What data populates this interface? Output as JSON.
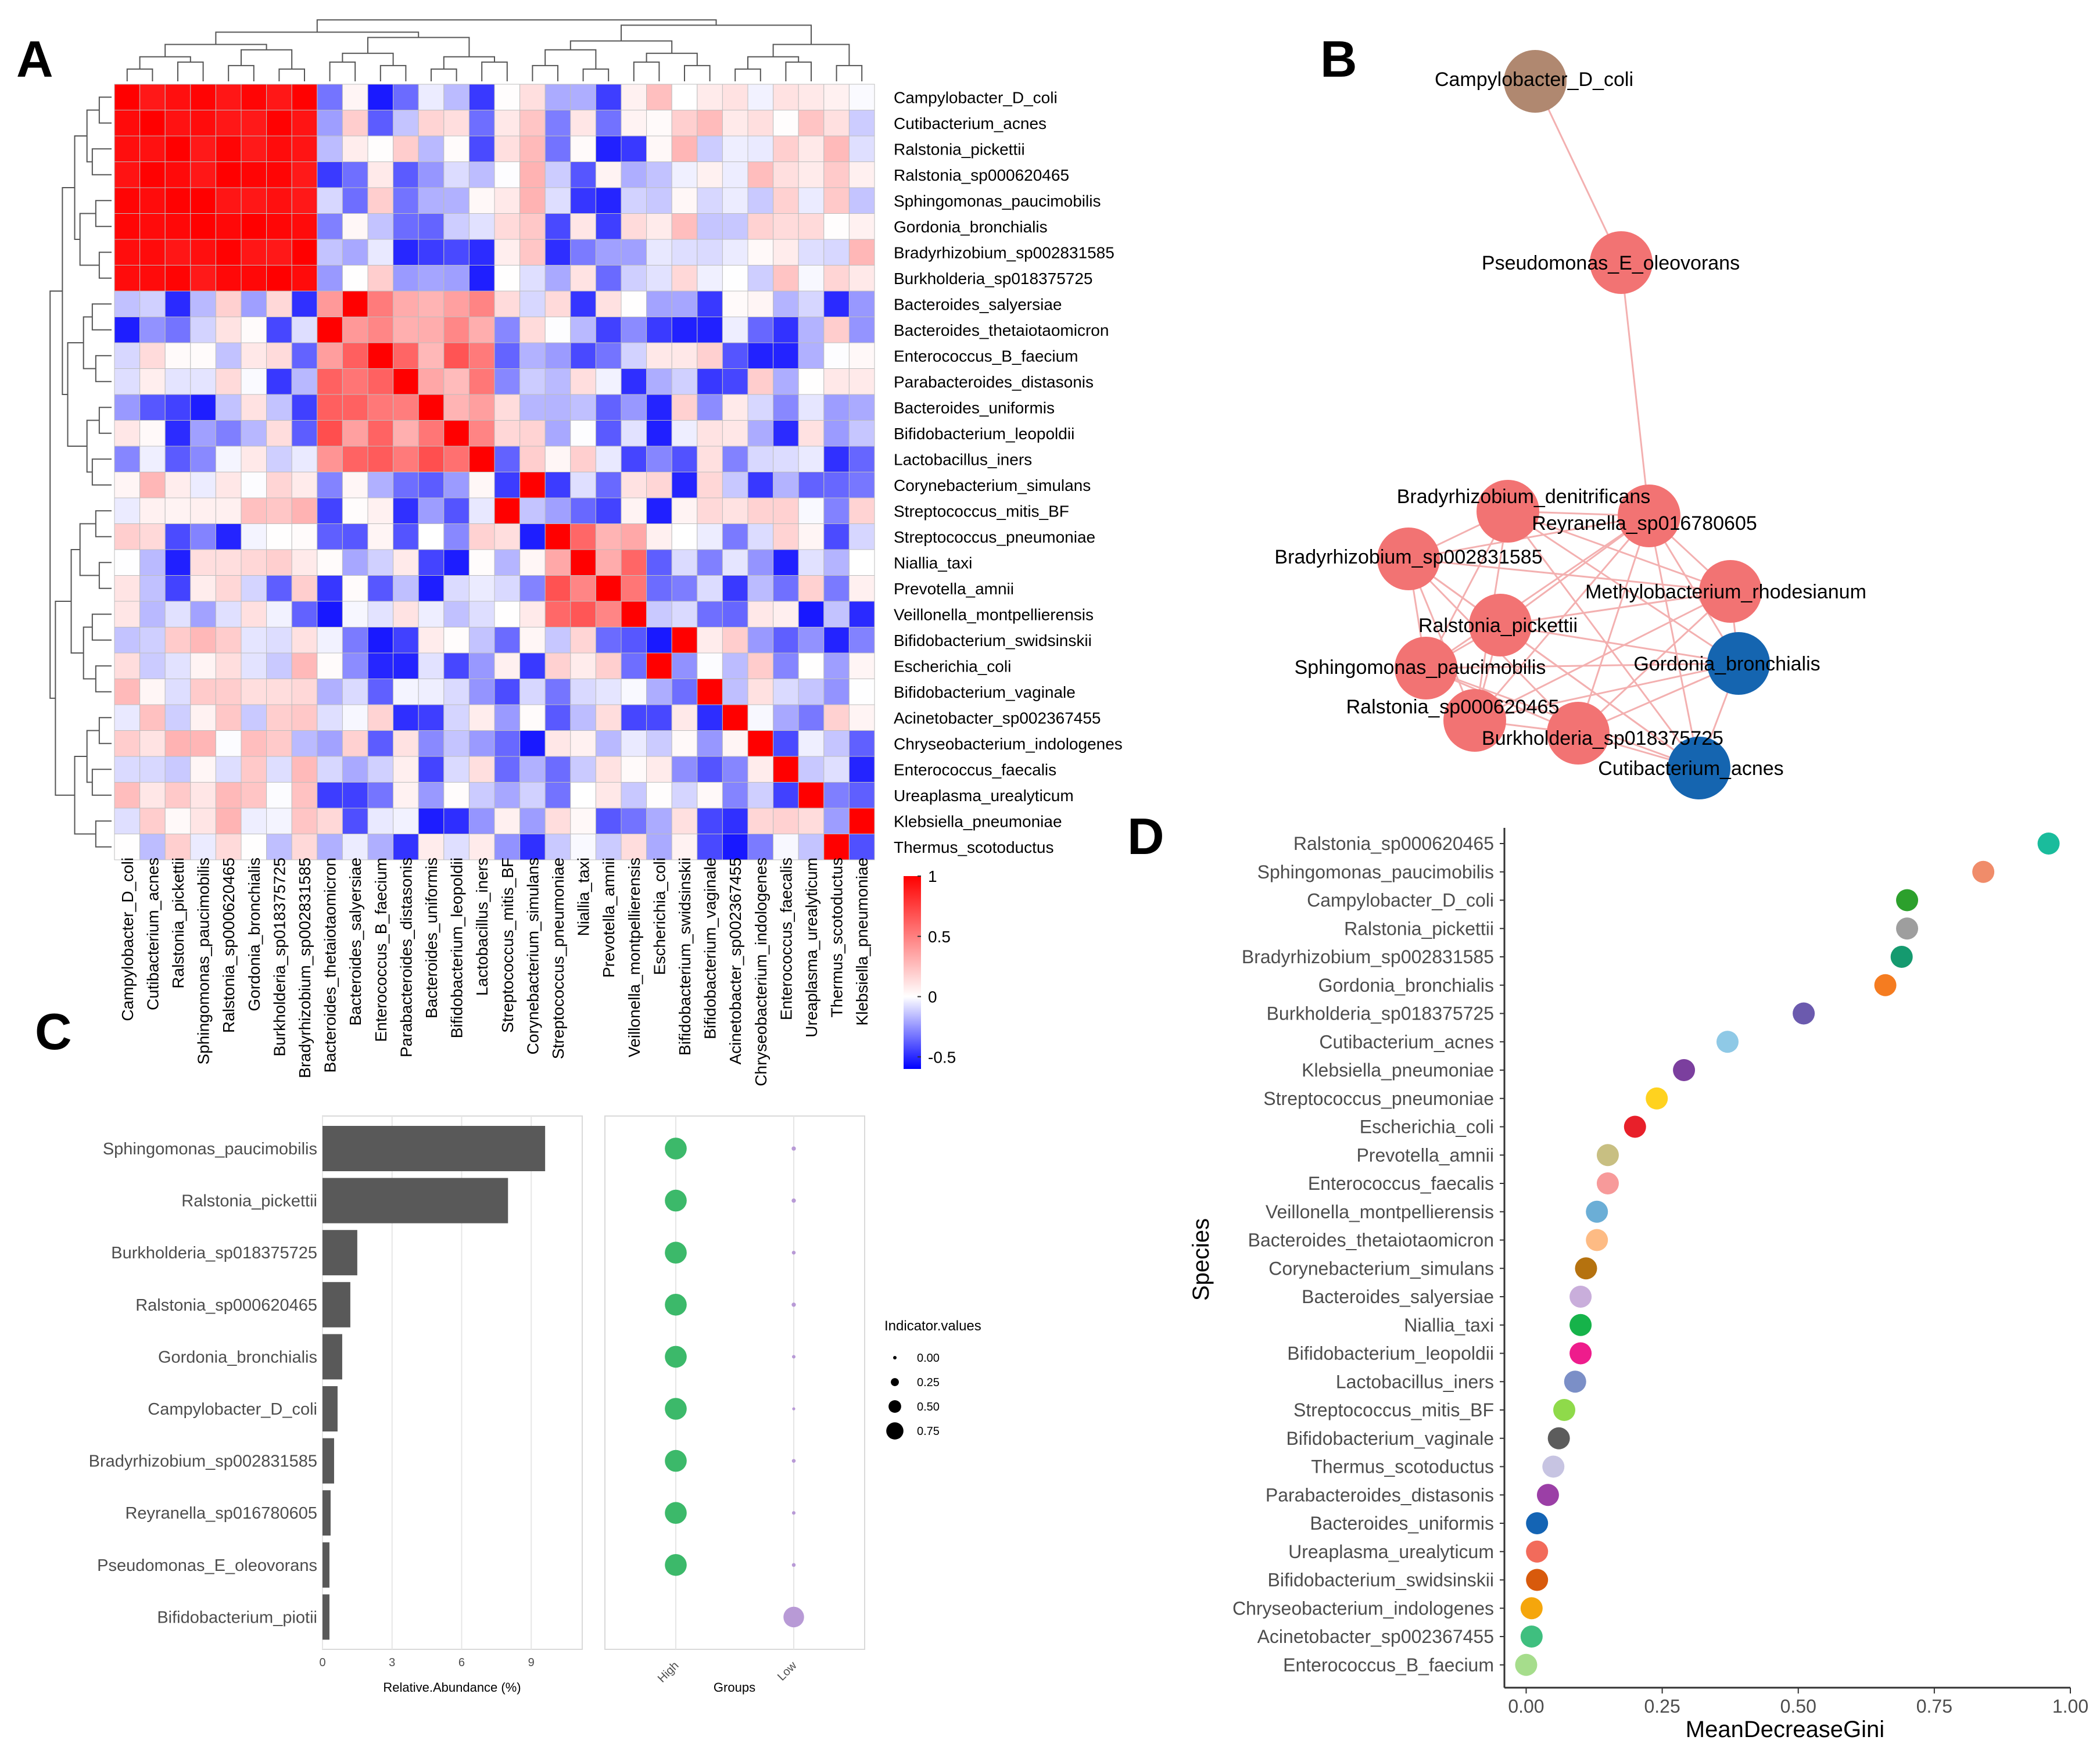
{
  "figure": {
    "panel_labels": [
      "A",
      "B",
      "C",
      "D"
    ]
  },
  "colors": {
    "heat_low": "#0000ff",
    "heat_mid": "#ffffff",
    "heat_high": "#ff0000",
    "node_pink": "#f27373",
    "node_blue": "#1565b0",
    "node_brown": "#b08870",
    "edge": "#f3b0b0",
    "bar": "#595959",
    "high_dot": "#3cb96a",
    "low_dot": "#b89ad6"
  },
  "chart_data": [
    {
      "panel": "A",
      "type": "heatmap",
      "title": "",
      "species": [
        "Campylobacter_D_coli",
        "Cutibacterium_acnes",
        "Ralstonia_pickettii",
        "Ralstonia_sp000620465",
        "Sphingomonas_paucimobilis",
        "Gordonia_bronchialis",
        "Bradyrhizobium_sp002831585",
        "Burkholderia_sp018375725",
        "Bacteroides_salyersiae",
        "Bacteroides_thetaiotaomicron",
        "Enterococcus_B_faecium",
        "Parabacteroides_distasonis",
        "Bacteroides_uniformis",
        "Bifidobacterium_leopoldii",
        "Lactobacillus_iners",
        "Corynebacterium_simulans",
        "Streptococcus_mitis_BF",
        "Streptococcus_pneumoniae",
        "Niallia_taxi",
        "Prevotella_amnii",
        "Veillonella_montpellierensis",
        "Bifidobacterium_swidsinskii",
        "Escherichia_coli",
        "Bifidobacterium_vaginale",
        "Acinetobacter_sp002367455",
        "Chryseobacterium_indologenes",
        "Enterococcus_faecalis",
        "Ureaplasma_urealyticum",
        "Klebsiella_pneumoniae",
        "Thermus_scotoductus"
      ],
      "columns": [
        "Campylobacter_D_coli",
        "Cutibacterium_acnes",
        "Ralstonia_pickettii",
        "Sphingomonas_paucimobilis",
        "Ralstonia_sp000620465",
        "Gordonia_bronchialis",
        "Burkholderia_sp018375725",
        "Bradyrhizobium_sp002831585",
        "Bacteroides_thetaiotaomicron",
        "Bacteroides_salyersiae",
        "Enterococcus_B_faecium",
        "Parabacteroides_distasonis",
        "Bacteroides_uniformis",
        "Bifidobacterium_leopoldii",
        "Lactobacillus_iners",
        "Streptococcus_mitis_BF",
        "Corynebacterium_simulans",
        "Streptococcus_pneumoniae",
        "Niallia_taxi",
        "Prevotella_amnii",
        "Veillonella_montpellierensis",
        "Escherichia_coli",
        "Bifidobacterium_swidsinskii",
        "Bifidobacterium_vaginale",
        "Acinetobacter_sp002367455",
        "Chryseobacterium_indologenes",
        "Enterococcus_faecalis",
        "Ureaplasma_urealyticum",
        "Thermus_scotoductus",
        "Klebsiella_pneumoniae"
      ],
      "colorbar": {
        "ticks": [
          "1",
          "0.5",
          "0",
          "-0.5"
        ],
        "range": [
          -0.6,
          1
        ]
      }
    },
    {
      "panel": "B",
      "type": "network",
      "nodes": [
        {
          "label": "Campylobacter_D_coli",
          "color": "brown"
        },
        {
          "label": "Pseudomonas_E_oleovorans",
          "color": "pink"
        },
        {
          "label": "Bradyrhizobium_denitrificans",
          "color": "pink"
        },
        {
          "label": "Reyranella_sp016780605",
          "color": "pink"
        },
        {
          "label": "Bradyrhizobium_sp002831585",
          "color": "pink"
        },
        {
          "label": "Methylobacterium_rhodesianum",
          "color": "pink"
        },
        {
          "label": "Ralstonia_pickettii",
          "color": "pink"
        },
        {
          "label": "Sphingomonas_paucimobilis",
          "color": "pink"
        },
        {
          "label": "Gordonia_bronchialis",
          "color": "blue"
        },
        {
          "label": "Ralstonia_sp000620465",
          "color": "pink"
        },
        {
          "label": "Burkholderia_sp018375725",
          "color": "pink"
        },
        {
          "label": "Cutibacterium_acnes",
          "color": "blue"
        }
      ]
    },
    {
      "panel": "C",
      "type": "bar",
      "categories": [
        "Sphingomonas_paucimobilis",
        "Ralstonia_pickettii",
        "Burkholderia_sp018375725",
        "Ralstonia_sp000620465",
        "Gordonia_bronchialis",
        "Campylobacter_D_coli",
        "Bradyrhizobium_sp002831585",
        "Reyranella_sp016780605",
        "Pseudomonas_E_oleovorans",
        "Bifidobacterium_piotii"
      ],
      "values": [
        9.6,
        8.0,
        1.5,
        1.2,
        0.85,
        0.65,
        0.5,
        0.35,
        0.3,
        0.3
      ],
      "xlabel": "Relative.Abundance (%)",
      "xticks": [
        "0",
        "3",
        "6",
        "9"
      ],
      "xlim": [
        0,
        11.2
      ],
      "indicator": {
        "groups": [
          "High",
          "Low"
        ],
        "xlabel": "Groups",
        "high_values": [
          0.8,
          0.8,
          0.8,
          0.8,
          0.8,
          0.8,
          0.8,
          0.8,
          0.8,
          0.0
        ],
        "low_values": [
          0.08,
          0.08,
          0.06,
          0.08,
          0.05,
          0.03,
          0.06,
          0.05,
          0.06,
          0.75
        ],
        "legend_title": "Indicator.values",
        "legend_labels": [
          "0.00",
          "0.25",
          "0.50",
          "0.75"
        ],
        "legend_values": [
          0.0,
          0.25,
          0.5,
          0.75
        ]
      }
    },
    {
      "panel": "D",
      "type": "scatter",
      "ylabel": "Species",
      "xlabel": "MeanDecreaseGini",
      "xlim": [
        -0.04,
        1.0
      ],
      "xticks": [
        "0.00",
        "0.25",
        "0.50",
        "0.75",
        "1.00"
      ],
      "species": [
        "Ralstonia_sp000620465",
        "Sphingomonas_paucimobilis",
        "Campylobacter_D_coli",
        "Ralstonia_pickettii",
        "Bradyrhizobium_sp002831585",
        "Gordonia_bronchialis",
        "Burkholderia_sp018375725",
        "Cutibacterium_acnes",
        "Klebsiella_pneumoniae",
        "Streptococcus_pneumoniae",
        "Escherichia_coli",
        "Prevotella_amnii",
        "Enterococcus_faecalis",
        "Veillonella_montpellierensis",
        "Bacteroides_thetaiotaomicron",
        "Corynebacterium_simulans",
        "Bacteroides_salyersiae",
        "Niallia_taxi",
        "Bifidobacterium_leopoldii",
        "Lactobacillus_iners",
        "Streptococcus_mitis_BF",
        "Bifidobacterium_vaginale",
        "Thermus_scotoductus",
        "Parabacteroides_distasonis",
        "Bacteroides_uniformis",
        "Ureaplasma_urealyticum",
        "Bifidobacterium_swidsinskii",
        "Chryseobacterium_indologenes",
        "Acinetobacter_sp002367455",
        "Enterococcus_B_faecium"
      ],
      "values": [
        0.96,
        0.84,
        0.7,
        0.7,
        0.69,
        0.66,
        0.51,
        0.37,
        0.29,
        0.24,
        0.2,
        0.15,
        0.15,
        0.13,
        0.13,
        0.11,
        0.1,
        0.1,
        0.1,
        0.09,
        0.07,
        0.06,
        0.05,
        0.04,
        0.02,
        0.02,
        0.02,
        0.01,
        0.01,
        0.0
      ],
      "point_colors": [
        "#1abc9c",
        "#f08c6a",
        "#2ca02c",
        "#9e9e9e",
        "#159a6f",
        "#f57c20",
        "#6b5aae",
        "#8fc9e6",
        "#7b3f9e",
        "#ffd21f",
        "#e8202a",
        "#c8bf82",
        "#f79a9a",
        "#6baed6",
        "#fdbb84",
        "#b5720f",
        "#c9aedb",
        "#16b34a",
        "#ee1c8c",
        "#7b8fc7",
        "#8fda4a",
        "#5c5c5c",
        "#c7c4e2",
        "#9b3fa6",
        "#1464b4",
        "#f26b5b",
        "#d85a0c",
        "#f5a60c",
        "#3fbf7f",
        "#a6dd8c"
      ]
    }
  ]
}
